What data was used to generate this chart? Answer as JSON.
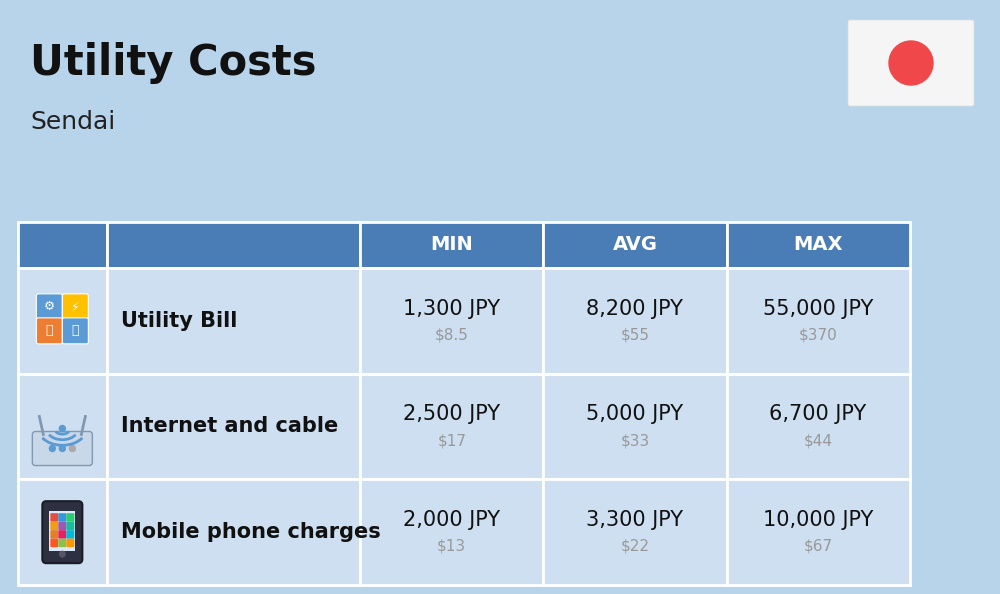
{
  "title": "Utility Costs",
  "subtitle": "Sendai",
  "bg_color": "#b8d4ea",
  "header_bg": "#4a7db5",
  "header_text_color": "#ffffff",
  "row_bg": "#cddff0",
  "table_border_color": "#ffffff",
  "columns": [
    "",
    "",
    "MIN",
    "AVG",
    "MAX"
  ],
  "rows": [
    {
      "icon_label": "utility",
      "name": "Utility Bill",
      "min_jpy": "1,300 JPY",
      "min_usd": "$8.5",
      "avg_jpy": "8,200 JPY",
      "avg_usd": "$55",
      "max_jpy": "55,000 JPY",
      "max_usd": "$370"
    },
    {
      "icon_label": "internet",
      "name": "Internet and cable",
      "min_jpy": "2,500 JPY",
      "min_usd": "$17",
      "avg_jpy": "5,000 JPY",
      "avg_usd": "$33",
      "max_jpy": "6,700 JPY",
      "max_usd": "$44"
    },
    {
      "icon_label": "mobile",
      "name": "Mobile phone charges",
      "min_jpy": "2,000 JPY",
      "min_usd": "$13",
      "avg_jpy": "3,300 JPY",
      "avg_usd": "$22",
      "max_jpy": "10,000 JPY",
      "max_usd": "$67"
    }
  ],
  "flag_bg": "#f5f5f5",
  "flag_circle_color": "#f0484a",
  "jpy_fontsize": 15,
  "usd_fontsize": 11,
  "usd_color": "#999999",
  "name_fontsize": 15,
  "header_fontsize": 14,
  "title_fontsize": 30,
  "subtitle_fontsize": 18
}
